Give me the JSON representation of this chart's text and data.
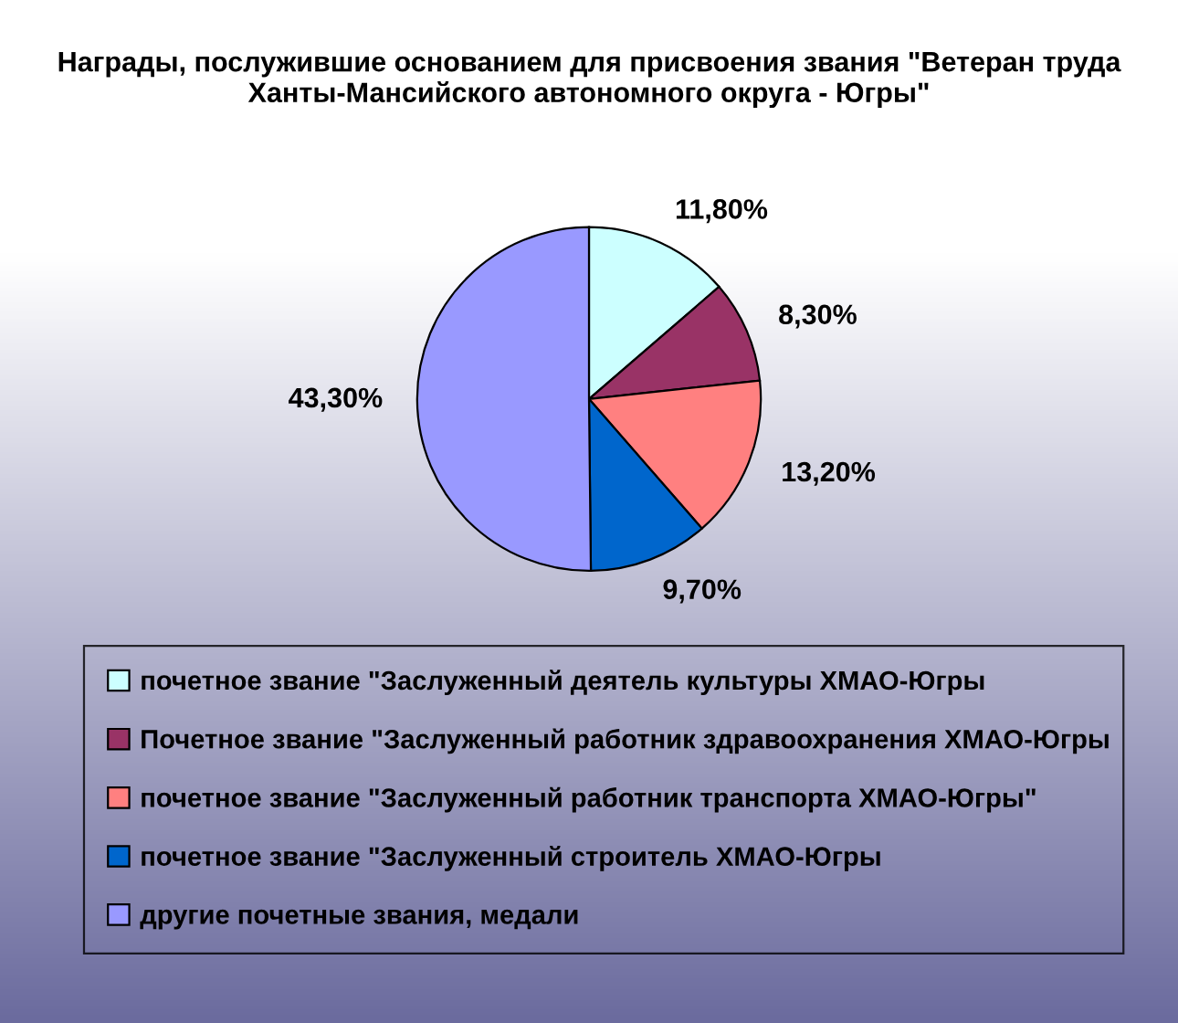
{
  "chart_data": {
    "type": "pie",
    "title": "Награды, послужившие основанием для присвоения звания \"Ветеран труда Ханты-Мансийского автономного округа - Югры\"",
    "categories": [
      "почетное звание \"Заслуженный деятель культуры ХМАО-Югры",
      "Почетное звание \"Заслуженный работник здравоохранения ХМАО-Югры",
      "почетное звание \"Заслуженный работник транспорта ХМАО-Югры\"",
      "почетное звание \"Заслуженный строитель ХМАО-Югры",
      "другие почетные звания, медали"
    ],
    "values": [
      11.8,
      8.3,
      13.2,
      9.7,
      43.3
    ],
    "colors": [
      "#ccffff",
      "#993366",
      "#ff8080",
      "#0066cc",
      "#9999ff"
    ],
    "value_labels": [
      "11,80%",
      "8,30%",
      "13,20%",
      "9,70%",
      "43,30%"
    ],
    "legend": "bottom"
  }
}
